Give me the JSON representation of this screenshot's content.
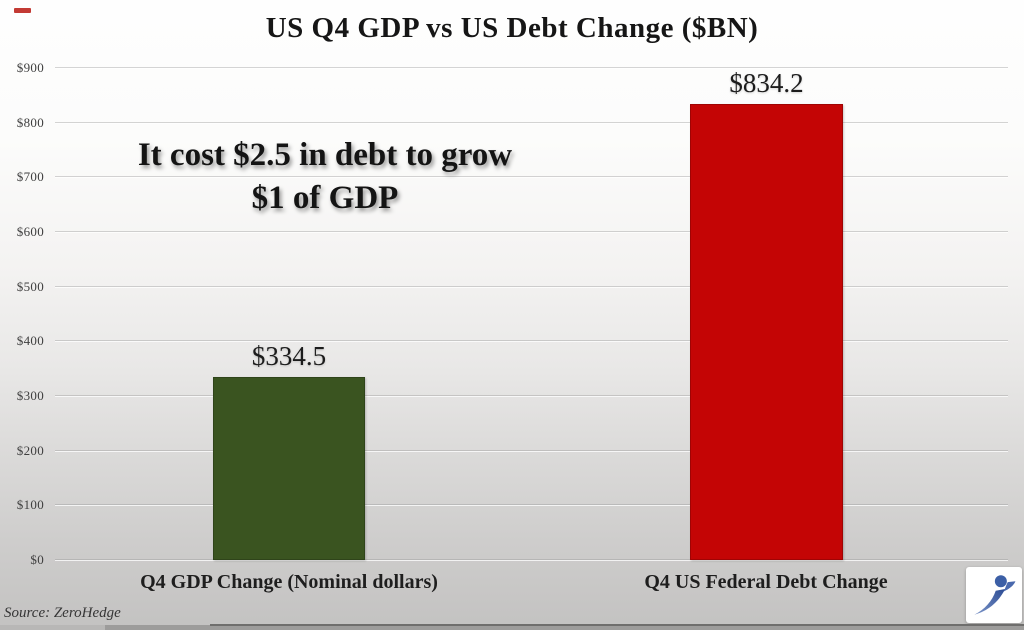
{
  "page": {
    "title": "US Q4 GDP vs US Debt Change ($BN)",
    "source_credit": "Source: ZeroHedge"
  },
  "annotation": {
    "line1": "It cost $2.5 in debt to grow",
    "line2": "$1 of GDP"
  },
  "chart_data": {
    "type": "bar",
    "title": "US Q4 GDP vs US Debt Change ($BN)",
    "categories": [
      "Q4 GDP Change (Nominal dollars)",
      "Q4 US Federal Debt Change"
    ],
    "values": [
      334.5,
      834.2
    ],
    "value_labels": [
      "$334.5",
      "$834.2"
    ],
    "bar_colors": [
      "#3a5420",
      "#c40505"
    ],
    "xlabel": "",
    "ylabel": "",
    "ylim": [
      0,
      900
    ],
    "ytick_labels": [
      "$0",
      "$100",
      "$200",
      "$300",
      "$400",
      "$500",
      "$600",
      "$700",
      "$800",
      "$900"
    ],
    "grid": true,
    "legend": "none",
    "annotation": "It cost $2.5 in debt to grow $1 of GDP"
  },
  "colors": {
    "gdp_bar_green": "#3a5420",
    "debt_bar_red": "#c40505",
    "logo_blue": "#3c5fa6",
    "corner_mark_red": "#c33a34"
  },
  "watermark": {
    "logo_name": "leaping-figure-logo"
  },
  "player": {
    "seekbar_present": true
  }
}
